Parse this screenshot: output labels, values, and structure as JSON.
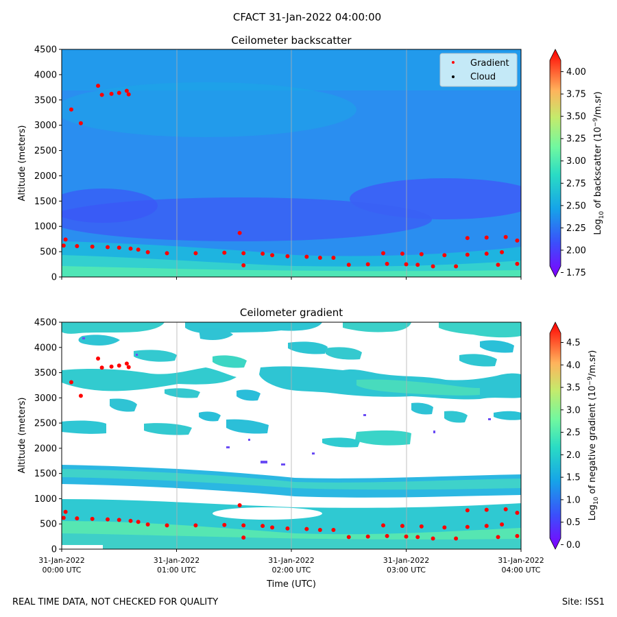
{
  "figure": {
    "suptitle": "CFACT 31-Jan-2022 04:00:00",
    "footer_left": "REAL TIME DATA, NOT CHECKED FOR QUALITY",
    "footer_right": "Site: ISS1"
  },
  "colors": {
    "gradient_marker": "#ff0000",
    "cloud_marker": "#000000",
    "gridline": "#b0b0b0",
    "legend_bg": "#cdeef8"
  },
  "chart_data": [
    {
      "type": "heatmap",
      "title": "Ceilometer backscatter",
      "xlabel": "",
      "ylabel": "Altitude (meters)",
      "xlim": [
        0,
        240
      ],
      "ylim": [
        0,
        4500
      ],
      "yticks": [
        0,
        500,
        1000,
        1500,
        2000,
        2500,
        3000,
        3500,
        4000,
        4500
      ],
      "colorbar": {
        "label_prefix": "Log",
        "label_sub": "10",
        "label_mid": " of backscatter (10",
        "label_sup": "−9",
        "label_suffix": "/m.sr)",
        "range": [
          1.7,
          4.25
        ],
        "ticks": [
          "1.75",
          "2.00",
          "2.25",
          "2.50",
          "2.75",
          "3.00",
          "3.25",
          "3.50",
          "3.75",
          "4.00"
        ]
      },
      "legend": {
        "position": "upper-right",
        "entries": [
          {
            "label": "Gradient",
            "color": "#ff0000"
          },
          {
            "label": "Cloud",
            "color": "#000000"
          }
        ]
      },
      "layers": [
        {
          "alt": [
            0,
            300
          ],
          "value": 2.85
        },
        {
          "alt": [
            300,
            500
          ],
          "value": 2.7
        },
        {
          "alt": [
            500,
            700
          ],
          "value": 2.55
        },
        {
          "alt": [
            700,
            1500
          ],
          "value": 2.3
        },
        {
          "alt": [
            1500,
            4500
          ],
          "value": 2.45
        }
      ],
      "gradient_points": [
        {
          "t": 1,
          "alt": 620
        },
        {
          "t": 8,
          "alt": 610
        },
        {
          "t": 16,
          "alt": 600
        },
        {
          "t": 24,
          "alt": 590
        },
        {
          "t": 30,
          "alt": 580
        },
        {
          "t": 36,
          "alt": 560
        },
        {
          "t": 40,
          "alt": 540
        },
        {
          "t": 45,
          "alt": 490
        },
        {
          "t": 55,
          "alt": 470
        },
        {
          "t": 70,
          "alt": 470
        },
        {
          "t": 85,
          "alt": 480
        },
        {
          "t": 95,
          "alt": 470
        },
        {
          "t": 105,
          "alt": 460
        },
        {
          "t": 110,
          "alt": 430
        },
        {
          "t": 118,
          "alt": 410
        },
        {
          "t": 128,
          "alt": 400
        },
        {
          "t": 135,
          "alt": 380
        },
        {
          "t": 142,
          "alt": 380
        },
        {
          "t": 150,
          "alt": 240
        },
        {
          "t": 160,
          "alt": 250
        },
        {
          "t": 170,
          "alt": 260
        },
        {
          "t": 180,
          "alt": 250
        },
        {
          "t": 186,
          "alt": 240
        },
        {
          "t": 194,
          "alt": 210
        },
        {
          "t": 206,
          "alt": 210
        },
        {
          "t": 168,
          "alt": 470
        },
        {
          "t": 178,
          "alt": 460
        },
        {
          "t": 188,
          "alt": 450
        },
        {
          "t": 200,
          "alt": 430
        },
        {
          "t": 212,
          "alt": 440
        },
        {
          "t": 222,
          "alt": 460
        },
        {
          "t": 230,
          "alt": 490
        },
        {
          "t": 212,
          "alt": 770
        },
        {
          "t": 222,
          "alt": 780
        },
        {
          "t": 232,
          "alt": 790
        },
        {
          "t": 238,
          "alt": 720
        },
        {
          "t": 228,
          "alt": 240
        },
        {
          "t": 238,
          "alt": 260
        },
        {
          "t": 2,
          "alt": 740
        },
        {
          "t": 93,
          "alt": 870
        },
        {
          "t": 95,
          "alt": 230
        },
        {
          "t": 5,
          "alt": 3310
        },
        {
          "t": 10,
          "alt": 3040
        },
        {
          "t": 19,
          "alt": 3780
        },
        {
          "t": 21,
          "alt": 3600
        },
        {
          "t": 26,
          "alt": 3620
        },
        {
          "t": 30,
          "alt": 3640
        },
        {
          "t": 34,
          "alt": 3680
        },
        {
          "t": 35,
          "alt": 3610
        }
      ]
    },
    {
      "type": "heatmap",
      "title": "Ceilometer gradient",
      "xlabel": "Time (UTC)",
      "ylabel": "Altitude (meters)",
      "xlim": [
        0,
        240
      ],
      "ylim": [
        0,
        4500
      ],
      "yticks": [
        0,
        500,
        1000,
        1500,
        2000,
        2500,
        3000,
        3500,
        4000,
        4500
      ],
      "xticks": [
        {
          "t": 0,
          "date": "31-Jan-2022",
          "time": "00:00 UTC"
        },
        {
          "t": 60,
          "date": "31-Jan-2022",
          "time": "01:00 UTC"
        },
        {
          "t": 120,
          "date": "31-Jan-2022",
          "time": "02:00 UTC"
        },
        {
          "t": 180,
          "date": "31-Jan-2022",
          "time": "03:00 UTC"
        },
        {
          "t": 240,
          "date": "31-Jan-2022",
          "time": "04:00 UTC"
        }
      ],
      "colorbar": {
        "label_prefix": "Log",
        "label_sub": "10",
        "label_mid": " of negative gradient (10",
        "label_sup": "−9",
        "label_suffix": "/m.sr)",
        "range": [
          -0.1,
          4.95
        ],
        "ticks": [
          "0.0",
          "0.5",
          "1.0",
          "1.5",
          "2.0",
          "2.5",
          "3.0",
          "3.5",
          "4.0",
          "4.5"
        ]
      },
      "bands": [
        {
          "alt": [
            0,
            450
          ],
          "value": 1.9
        },
        {
          "alt": [
            450,
            1000
          ],
          "value": 1.6
        },
        {
          "alt": [
            1300,
            1700
          ],
          "value": 1.2
        },
        {
          "alt": [
            2300,
            2600
          ],
          "value": 1.7
        },
        {
          "alt": [
            2900,
            3600
          ],
          "value": 1.6
        },
        {
          "alt": [
            3900,
            4500
          ],
          "value": 1.8
        }
      ]
    }
  ]
}
